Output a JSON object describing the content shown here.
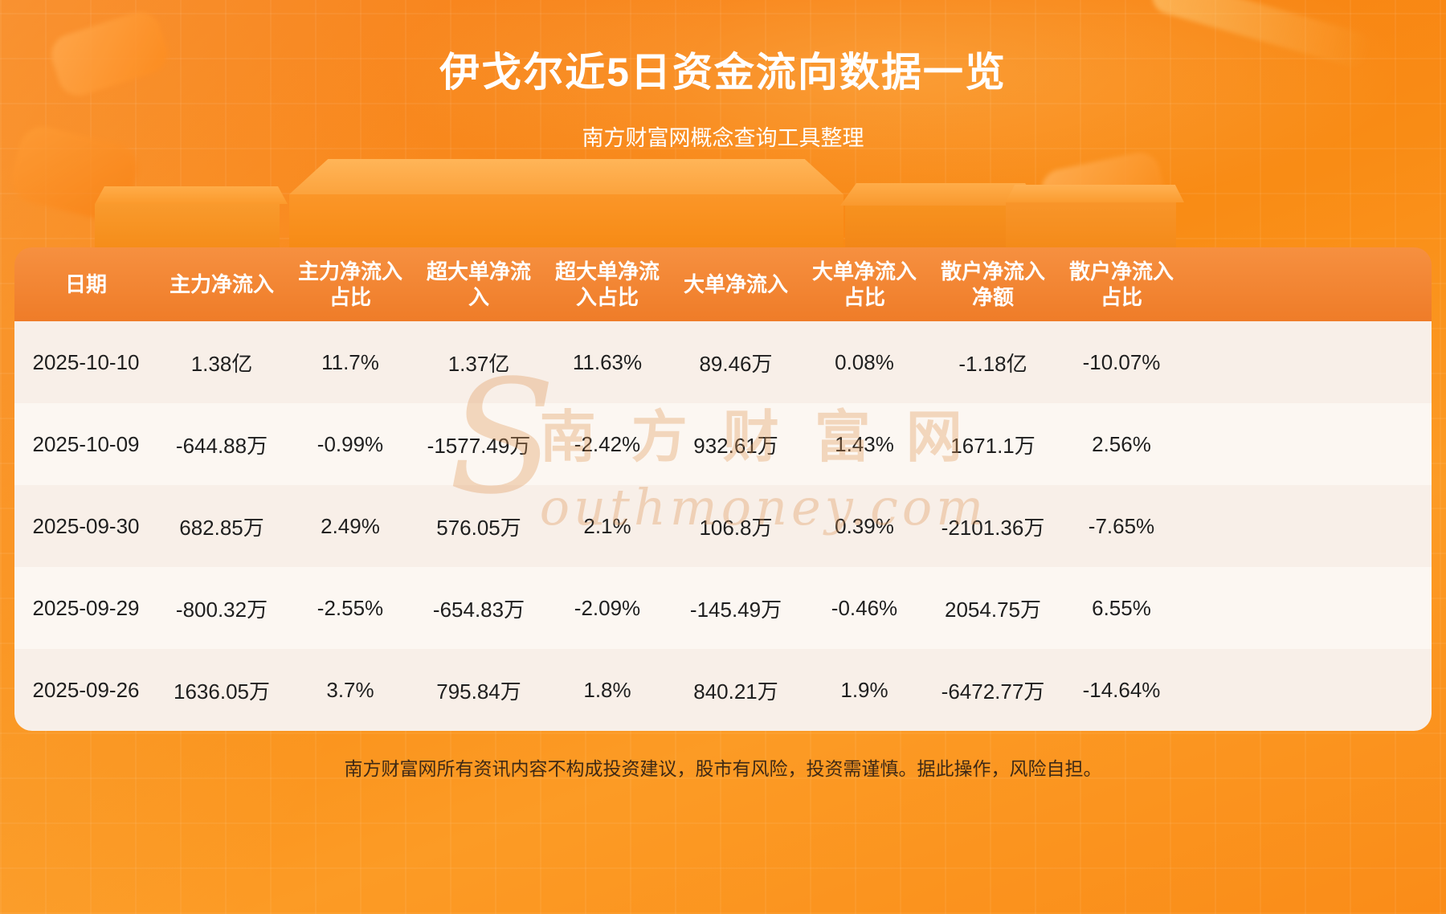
{
  "page": {
    "title": "伊戈尔近5日资金流向数据一览",
    "subtitle": "南方财富网概念查询工具整理",
    "footer": "南方财富网所有资讯内容不构成投资建议，股市有风险，投资需谨慎。据此操作，风险自担。",
    "watermark": {
      "cn": "南方财富网",
      "en": "Southmoney.com"
    }
  },
  "colors": {
    "background_accent": "#f98c15",
    "table_header": "#ef7c28",
    "row_odd": "#f8efe8",
    "row_even": "#fcf7f2",
    "header_text": "#ffffff",
    "cell_text": "#1f1f1f"
  },
  "chart_data": {
    "type": "table",
    "title": "伊戈尔近5日资金流向数据一览",
    "columns": [
      "日期",
      "主力净流入",
      "主力净流入占比",
      "超大单净流入",
      "超大单净流入占比",
      "大单净流入",
      "大单净流入占比",
      "散户净流入净额",
      "散户净流入占比"
    ],
    "column_lines": [
      [
        "日期"
      ],
      [
        "主力净流入"
      ],
      [
        "主力净流入",
        "占比"
      ],
      [
        "超大单净流",
        "入"
      ],
      [
        "超大单净流",
        "入占比"
      ],
      [
        "大单净流入"
      ],
      [
        "大单净流入",
        "占比"
      ],
      [
        "散户净流入",
        "净额"
      ],
      [
        "散户净流入",
        "占比"
      ]
    ],
    "rows": [
      [
        "2025-10-10",
        "1.38亿",
        "11.7%",
        "1.37亿",
        "11.63%",
        "89.46万",
        "0.08%",
        "-1.18亿",
        "-10.07%"
      ],
      [
        "2025-10-09",
        "-644.88万",
        "-0.99%",
        "-1577.49万",
        "-2.42%",
        "932.61万",
        "1.43%",
        "1671.1万",
        "2.56%"
      ],
      [
        "2025-09-30",
        "682.85万",
        "2.49%",
        "576.05万",
        "2.1%",
        "106.8万",
        "0.39%",
        "-2101.36万",
        "-7.65%"
      ],
      [
        "2025-09-29",
        "-800.32万",
        "-2.55%",
        "-654.83万",
        "-2.09%",
        "-145.49万",
        "-0.46%",
        "2054.75万",
        "6.55%"
      ],
      [
        "2025-09-26",
        "1636.05万",
        "3.7%",
        "795.84万",
        "1.8%",
        "840.21万",
        "1.9%",
        "-6472.77万",
        "-14.64%"
      ]
    ]
  }
}
